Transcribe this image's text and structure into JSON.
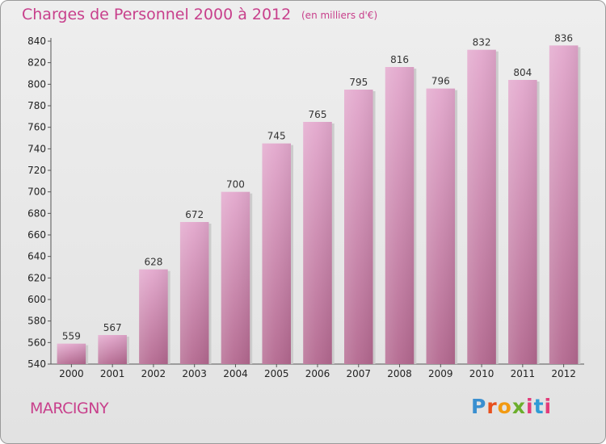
{
  "header": {
    "title": "Charges de Personnel 2000 à 2012",
    "subtitle": "(en milliers d'€)"
  },
  "footer": {
    "commune": "MARCIGNY",
    "logo": [
      "P",
      "r",
      "o",
      "x",
      "i",
      "t",
      "i"
    ]
  },
  "chart_data": {
    "type": "bar",
    "title": "Charges de Personnel 2000 à 2012",
    "subtitle": "(en milliers d'€)",
    "categories": [
      "2000",
      "2001",
      "2002",
      "2003",
      "2004",
      "2005",
      "2006",
      "2007",
      "2008",
      "2009",
      "2010",
      "2011",
      "2012"
    ],
    "values": [
      559,
      567,
      628,
      672,
      700,
      745,
      765,
      795,
      816,
      796,
      832,
      804,
      836
    ],
    "ylim": [
      540,
      840
    ],
    "yticks": [
      540,
      560,
      580,
      600,
      620,
      640,
      660,
      680,
      700,
      720,
      740,
      760,
      780,
      800,
      820,
      840
    ],
    "grid": false,
    "bar_color": "#d27fb1"
  }
}
